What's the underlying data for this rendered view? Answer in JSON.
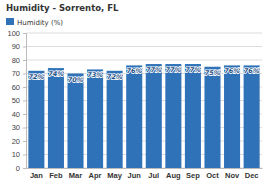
{
  "chart_data": {
    "type": "bar",
    "title": "Humidity - Sorrento, FL",
    "categories": [
      "Jan",
      "Feb",
      "Mar",
      "Apr",
      "May",
      "Jun",
      "Jul",
      "Aug",
      "Sep",
      "Oct",
      "Nov",
      "Dec"
    ],
    "series": [
      {
        "name": "Humidity (%)",
        "color": "#2f72b8",
        "values": [
          72,
          74,
          70,
          73,
          72,
          76,
          77,
          77,
          77,
          75,
          76,
          76
        ],
        "value_labels": [
          "72%",
          "74%",
          "70%",
          "73%",
          "72%",
          "76%",
          "77%",
          "77%",
          "77%",
          "75%",
          "76%",
          "76%"
        ]
      }
    ],
    "ylim": [
      0,
      100
    ],
    "yticks": [
      0,
      10,
      20,
      30,
      40,
      50,
      60,
      70,
      80,
      90,
      100
    ],
    "grid": true,
    "data_labels": true,
    "legend": "top-left"
  }
}
